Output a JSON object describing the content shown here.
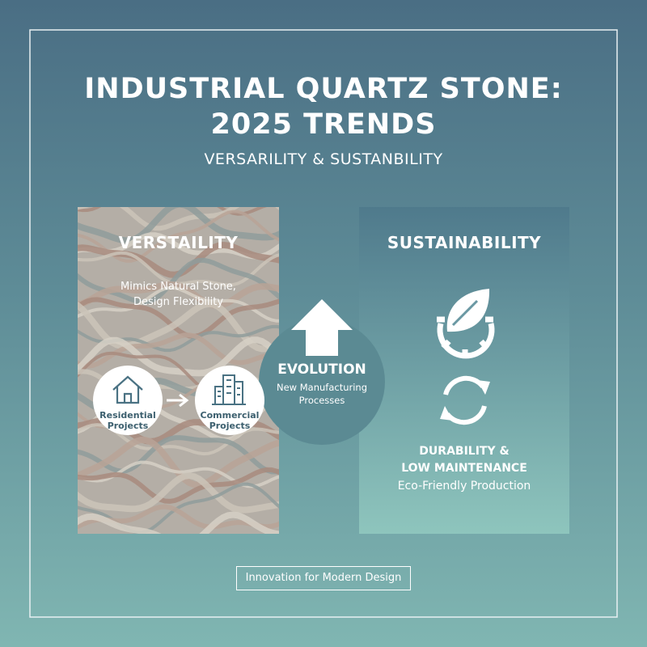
{
  "header": {
    "title_lines": [
      "INDUSTRIAL QUARTZ STONE:",
      "2025 TRENDS"
    ],
    "subtitle": "VERSARILITY & SUSTANBILITY"
  },
  "left_panel": {
    "heading": "VERSTAILITY",
    "description_lines": [
      "Mimics Natural Stone,",
      "Design Flexibility"
    ],
    "nodes": [
      {
        "label_lines": [
          "Residential",
          "Projects"
        ]
      },
      {
        "label_lines": [
          "Commercial",
          "Projects"
        ]
      }
    ]
  },
  "center": {
    "heading": "EVOLUTION",
    "description_lines": [
      "New Manufacturing",
      "Processes"
    ]
  },
  "right_panel": {
    "heading": "SUSTAINABILITY",
    "subheading_lines": [
      "DURABILITY &",
      "LOW MAINTENANCE"
    ],
    "description": "Eco-Friendly Production"
  },
  "footer": {
    "tagline": "Innovation for Modern Design"
  }
}
